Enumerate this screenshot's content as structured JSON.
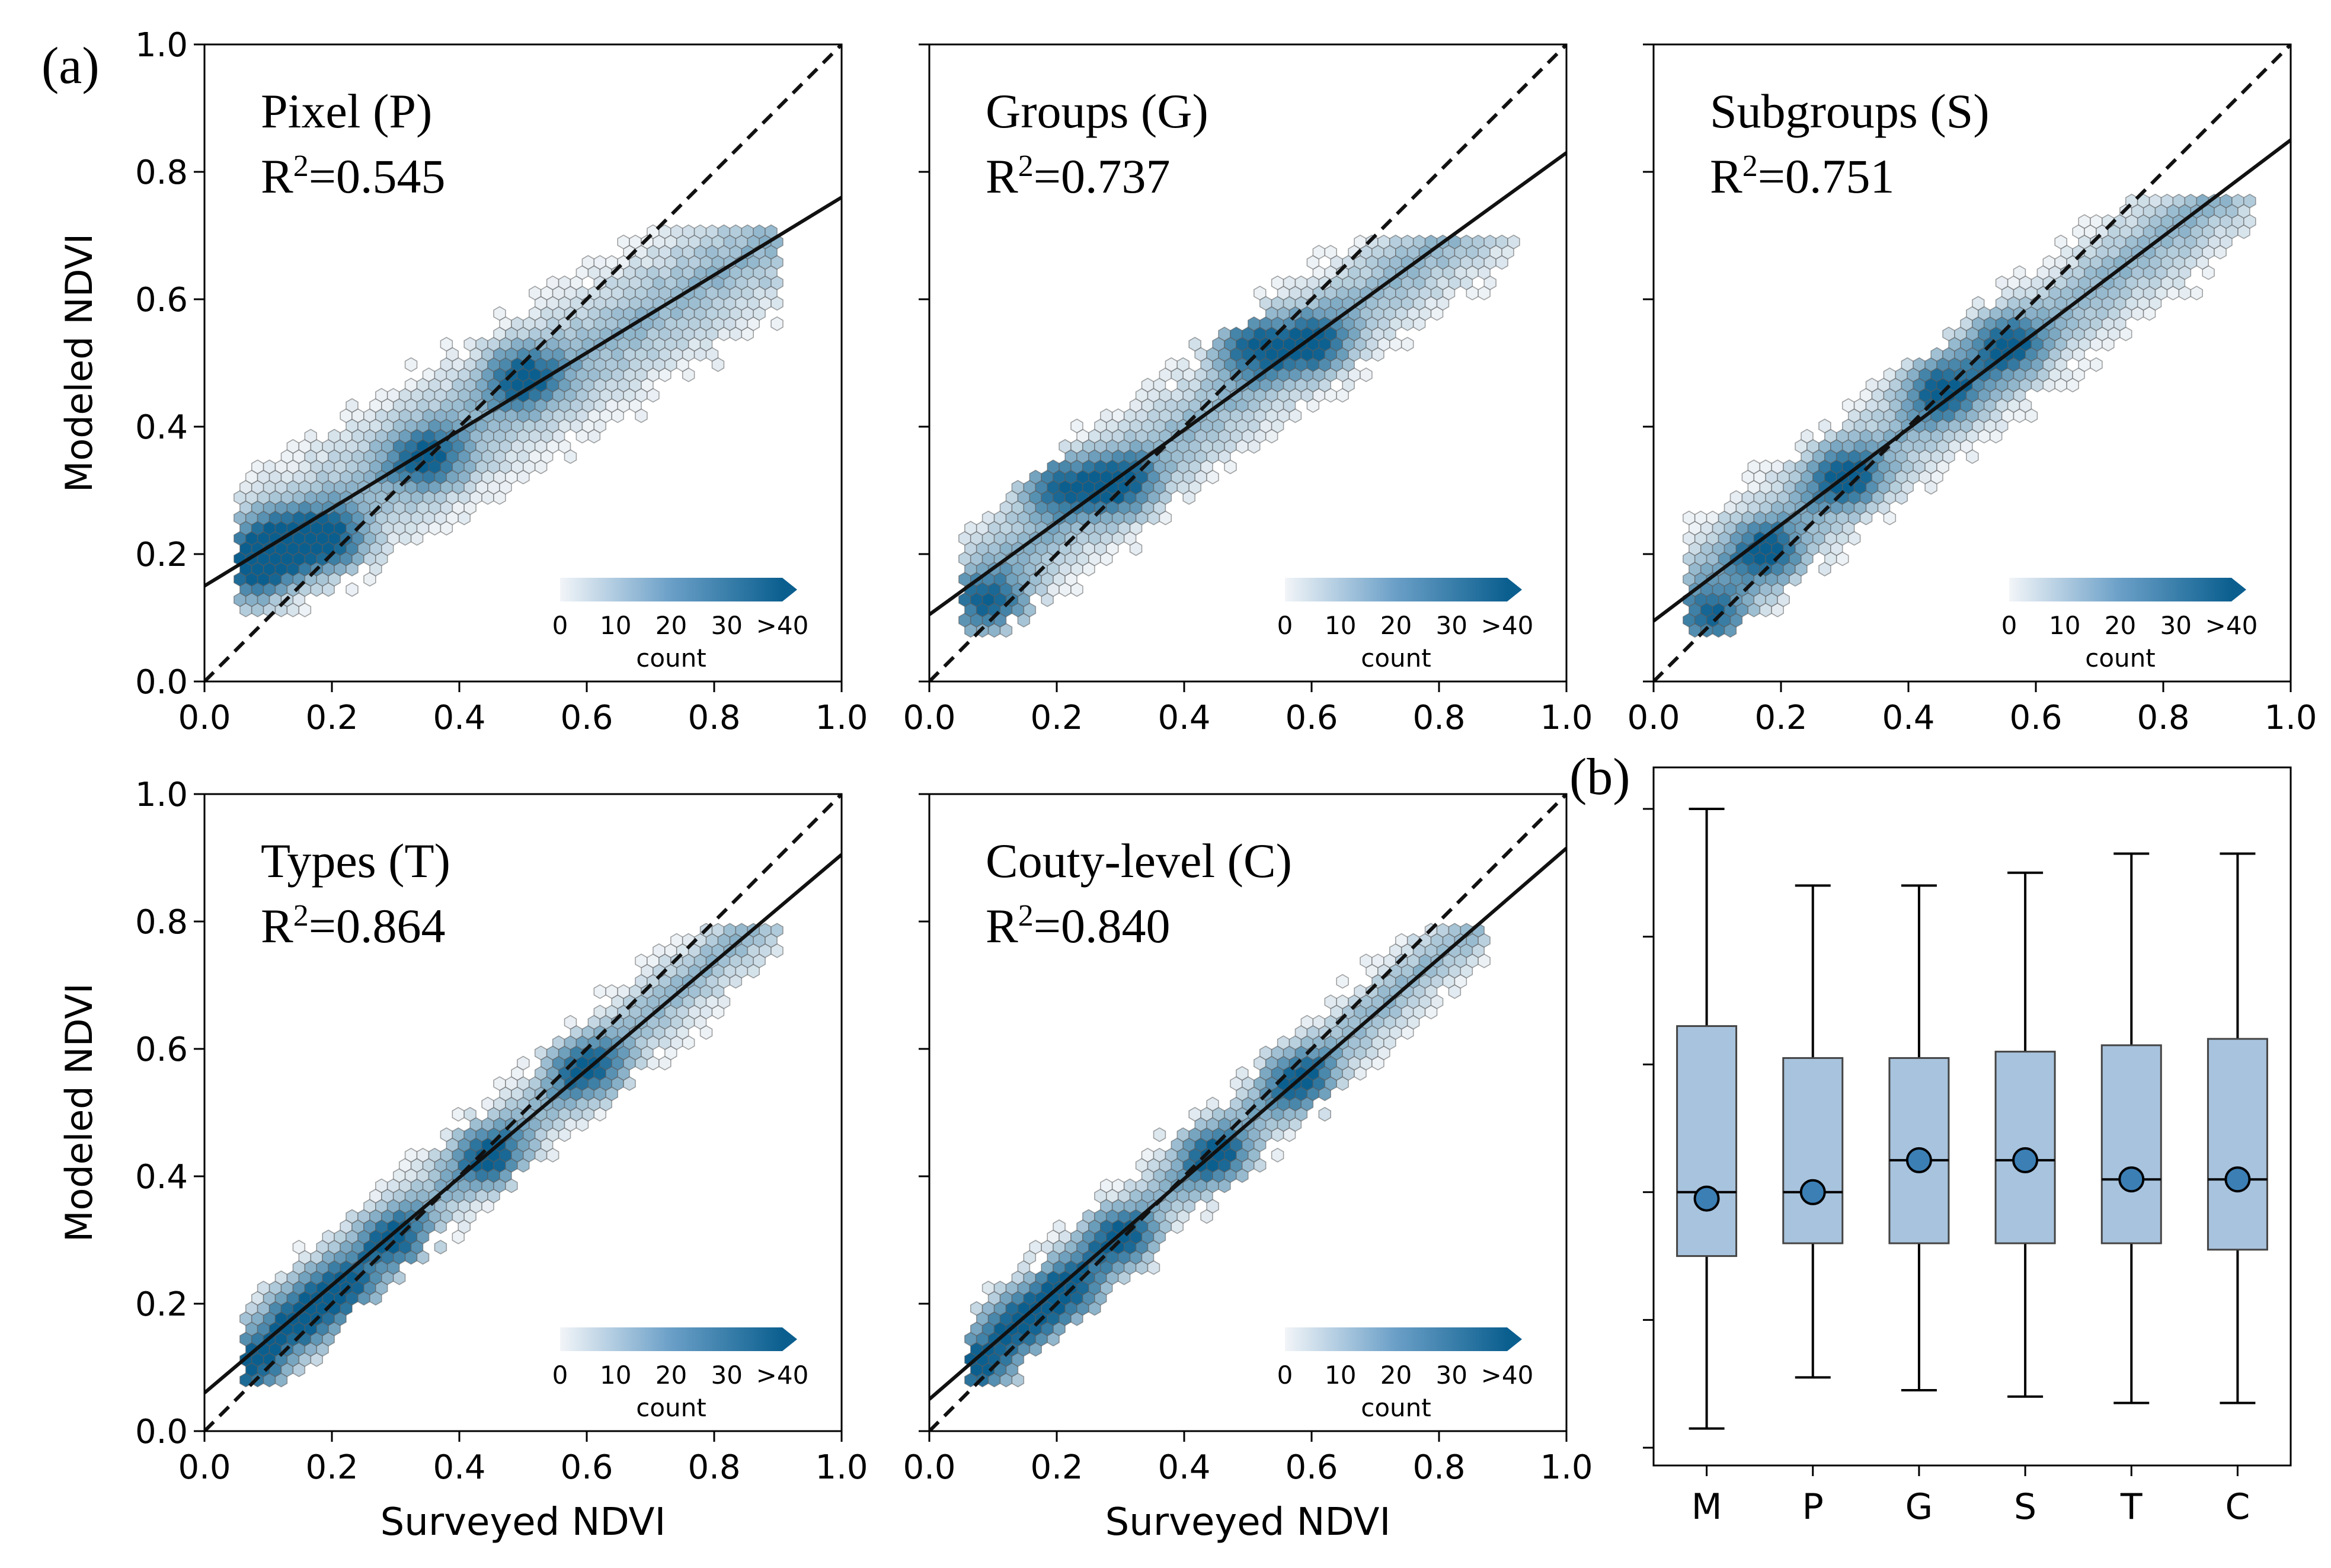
{
  "figure_labels": {
    "a": "(a)",
    "b": "(b)"
  },
  "colors": {
    "hex_dark": "#0b5f8f",
    "hex_light": "#f2f5f8",
    "hex_edge": "#5a5a5a",
    "box_fill": "#a8c3dd",
    "marker": "#3b7fb5"
  },
  "chart_data": [
    {
      "type": "hexbin",
      "id": "P",
      "name_text": "Pixel (P)",
      "r2_prefix": "R",
      "r2_sup": "2",
      "r2_value": "=0.545",
      "xlabel": "",
      "ylabel": "Modeled NDVI",
      "xlim": [
        0,
        1
      ],
      "ylim": [
        0,
        1
      ],
      "xticks": [
        "0.0",
        "0.2",
        "0.4",
        "0.6",
        "0.8",
        "1.0"
      ],
      "yticks": [
        "0.0",
        "0.2",
        "0.4",
        "0.6",
        "0.8",
        "1.0"
      ],
      "fit_line": {
        "intercept": 0.15,
        "slope": 0.61
      },
      "one_to_one": true,
      "point_cloud": {
        "x_range": [
          0.05,
          0.9
        ],
        "center_intercept": 0.15,
        "slope": 0.61,
        "spread": 0.13,
        "y_min": 0.1,
        "y_max": 0.72
      },
      "dense_cores": [
        [
          0.08,
          0.18
        ],
        [
          0.12,
          0.22
        ],
        [
          0.2,
          0.22
        ],
        [
          0.35,
          0.35
        ],
        [
          0.5,
          0.48
        ]
      ],
      "colorbar": {
        "ticks": [
          "0",
          "10",
          "20",
          "30",
          ">40"
        ],
        "label": "count"
      }
    },
    {
      "type": "hexbin",
      "id": "G",
      "name_text": "Groups (G)",
      "r2_prefix": "R",
      "r2_sup": "2",
      "r2_value": "=0.737",
      "xlabel": "",
      "ylabel": "",
      "xlim": [
        0,
        1
      ],
      "ylim": [
        0,
        1
      ],
      "xticks": [
        "0.0",
        "0.2",
        "0.4",
        "0.6",
        "0.8",
        "1.0"
      ],
      "yticks": [
        "",
        "",
        "",
        "",
        "",
        ""
      ],
      "fit_line": {
        "intercept": 0.105,
        "slope": 0.725
      },
      "one_to_one": true,
      "point_cloud": {
        "x_range": [
          0.05,
          0.92
        ],
        "center_intercept": 0.1,
        "slope": 0.73,
        "spread": 0.11,
        "y_min": 0.08,
        "y_max": 0.7
      },
      "dense_cores": [
        [
          0.1,
          0.12
        ],
        [
          0.2,
          0.31
        ],
        [
          0.3,
          0.31
        ],
        [
          0.5,
          0.53
        ],
        [
          0.6,
          0.53
        ]
      ],
      "colorbar": {
        "ticks": [
          "0",
          "10",
          "20",
          "30",
          ">40"
        ],
        "label": "count"
      }
    },
    {
      "type": "hexbin",
      "id": "S",
      "name_text": "Subgroups (S)",
      "r2_prefix": "R",
      "r2_sup": "2",
      "r2_value": "=0.751",
      "xlabel": "",
      "ylabel": "",
      "xlim": [
        0,
        1
      ],
      "ylim": [
        0,
        1
      ],
      "xticks": [
        "0.0",
        "0.2",
        "0.4",
        "0.6",
        "0.8",
        "1.0"
      ],
      "yticks": [
        "",
        "",
        "",
        "",
        "",
        ""
      ],
      "fit_line": {
        "intercept": 0.095,
        "slope": 0.755
      },
      "one_to_one": true,
      "point_cloud": {
        "x_range": [
          0.05,
          0.94
        ],
        "center_intercept": 0.09,
        "slope": 0.76,
        "spread": 0.11,
        "y_min": 0.08,
        "y_max": 0.76
      },
      "dense_cores": [
        [
          0.1,
          0.1
        ],
        [
          0.18,
          0.2
        ],
        [
          0.3,
          0.32
        ],
        [
          0.45,
          0.46
        ],
        [
          0.55,
          0.53
        ]
      ],
      "colorbar": {
        "ticks": [
          "0",
          "10",
          "20",
          "30",
          ">40"
        ],
        "label": "count"
      }
    },
    {
      "type": "hexbin",
      "id": "T",
      "name_text": "Types (T)",
      "r2_prefix": "R",
      "r2_sup": "2",
      "r2_value": "=0.864",
      "xlabel": "Surveyed NDVI",
      "ylabel": "Modeled NDVI",
      "xlim": [
        0,
        1
      ],
      "ylim": [
        0,
        1
      ],
      "xticks": [
        "0.0",
        "0.2",
        "0.4",
        "0.6",
        "0.8",
        "1.0"
      ],
      "yticks": [
        "0.0",
        "0.2",
        "0.4",
        "0.6",
        "0.8",
        "1.0"
      ],
      "fit_line": {
        "intercept": 0.06,
        "slope": 0.845
      },
      "one_to_one": true,
      "point_cloud": {
        "x_range": [
          0.06,
          0.9
        ],
        "center_intercept": 0.06,
        "slope": 0.85,
        "spread": 0.085,
        "y_min": 0.07,
        "y_max": 0.8
      },
      "dense_cores": [
        [
          0.08,
          0.1
        ],
        [
          0.15,
          0.17
        ],
        [
          0.22,
          0.22
        ],
        [
          0.3,
          0.3
        ],
        [
          0.45,
          0.43
        ],
        [
          0.6,
          0.57
        ]
      ],
      "colorbar": {
        "ticks": [
          "0",
          "10",
          "20",
          "30",
          ">40"
        ],
        "label": "count"
      }
    },
    {
      "type": "hexbin",
      "id": "C",
      "name_text": "Couty-level (C)",
      "r2_prefix": "R",
      "r2_sup": "2",
      "r2_value": "=0.840",
      "xlabel": "Surveyed NDVI",
      "ylabel": "",
      "xlim": [
        0,
        1
      ],
      "ylim": [
        0,
        1
      ],
      "xticks": [
        "0.0",
        "0.2",
        "0.4",
        "0.6",
        "0.8",
        "1.0"
      ],
      "yticks": [
        "",
        "",
        "",
        "",
        "",
        ""
      ],
      "fit_line": {
        "intercept": 0.05,
        "slope": 0.865
      },
      "one_to_one": true,
      "point_cloud": {
        "x_range": [
          0.06,
          0.88
        ],
        "center_intercept": 0.05,
        "slope": 0.87,
        "spread": 0.08,
        "y_min": 0.07,
        "y_max": 0.8
      },
      "dense_cores": [
        [
          0.08,
          0.1
        ],
        [
          0.15,
          0.17
        ],
        [
          0.22,
          0.22
        ],
        [
          0.3,
          0.3
        ],
        [
          0.45,
          0.43
        ],
        [
          0.58,
          0.55
        ]
      ],
      "colorbar": {
        "ticks": [
          "0",
          "10",
          "20",
          "30",
          ">40"
        ],
        "label": "count"
      }
    },
    {
      "type": "box",
      "id": "b",
      "categories": [
        "M",
        "P",
        "G",
        "S",
        "T",
        "C"
      ],
      "ylim": [
        0,
        1
      ],
      "boxes": [
        {
          "whisker_low": 0.03,
          "q1": 0.3,
          "median": 0.4,
          "q3": 0.66,
          "whisker_high": 1.0,
          "mean": 0.39
        },
        {
          "whisker_low": 0.11,
          "q1": 0.32,
          "median": 0.4,
          "q3": 0.61,
          "whisker_high": 0.88,
          "mean": 0.4
        },
        {
          "whisker_low": 0.09,
          "q1": 0.32,
          "median": 0.45,
          "q3": 0.61,
          "whisker_high": 0.88,
          "mean": 0.45
        },
        {
          "whisker_low": 0.08,
          "q1": 0.32,
          "median": 0.45,
          "q3": 0.62,
          "whisker_high": 0.9,
          "mean": 0.45
        },
        {
          "whisker_low": 0.07,
          "q1": 0.32,
          "median": 0.42,
          "q3": 0.63,
          "whisker_high": 0.93,
          "mean": 0.42
        },
        {
          "whisker_low": 0.07,
          "q1": 0.31,
          "median": 0.42,
          "q3": 0.64,
          "whisker_high": 0.93,
          "mean": 0.42
        }
      ],
      "yticks": [
        "",
        "",
        "",
        "",
        "",
        ""
      ]
    }
  ]
}
